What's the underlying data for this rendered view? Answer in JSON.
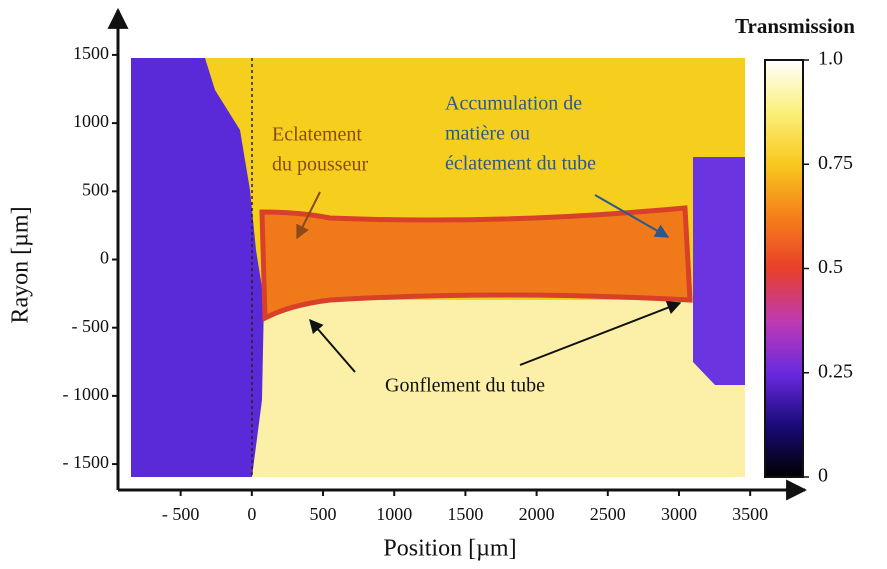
{
  "chart_data": {
    "type": "heatmap",
    "xlabel": "Position [µm]",
    "ylabel": "Rayon [µm]",
    "xlim": [
      -940,
      3850
    ],
    "ylim": [
      -1690,
      1800
    ],
    "xticks": [
      {
        "value": -500,
        "label": "- 500"
      },
      0,
      500,
      1000,
      1500,
      2000,
      2500,
      3000,
      3500
    ],
    "yticks": [
      1500,
      1000,
      500,
      0,
      {
        "value": -500,
        "label": "- 500"
      },
      {
        "value": -1000,
        "label": "- 1000"
      },
      {
        "value": -1500,
        "label": "- 1500"
      }
    ],
    "colorbar": {
      "title": "Transmission",
      "lim": [
        0,
        1
      ],
      "ticks": [
        {
          "value": 1,
          "label": "1.0"
        },
        0.75,
        0.5,
        0.25,
        0
      ],
      "colormap": [
        "#000000",
        "#1a0a7a",
        "#6a2ae0",
        "#c03ab0",
        "#e8402a",
        "#f5801a",
        "#f8c81e",
        "#fbf07a",
        "#ffffff"
      ]
    },
    "annotations": [
      {
        "lines": [
          "Eclatement",
          "du pousseur"
        ],
        "color": "#8a4a1a"
      },
      {
        "lines": [
          "Accumulation de",
          "matière ou",
          "éclatement du tube"
        ],
        "color": "#2a5a8a"
      },
      {
        "lines": [
          "Gonflement du tube"
        ],
        "color": "#111111"
      }
    ]
  }
}
